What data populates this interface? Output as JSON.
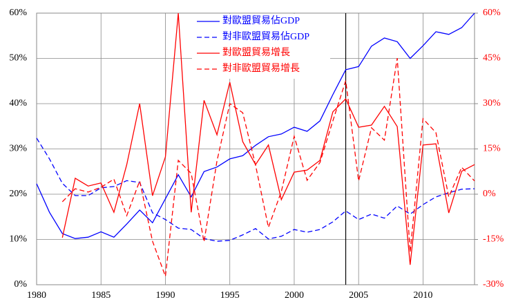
{
  "chart_data": {
    "type": "line",
    "x": [
      1980,
      1981,
      1982,
      1983,
      1984,
      1985,
      1986,
      1987,
      1988,
      1989,
      1990,
      1991,
      1992,
      1993,
      1994,
      1995,
      1996,
      1997,
      1998,
      1999,
      2000,
      2001,
      2002,
      2003,
      2004,
      2005,
      2006,
      2007,
      2008,
      2009,
      2010,
      2011,
      2012,
      2013,
      2014
    ],
    "xlim": [
      1980,
      2014
    ],
    "xticks": [
      1980,
      1985,
      1990,
      1995,
      2000,
      2005,
      2010
    ],
    "ylim": [
      0,
      60
    ],
    "yticks": [
      {
        "value": 0,
        "label": "0%"
      },
      {
        "value": 10,
        "label": "10%"
      },
      {
        "value": 20,
        "label": "20%"
      },
      {
        "value": 30,
        "label": "30%"
      },
      {
        "value": 40,
        "label": "40%"
      },
      {
        "value": 50,
        "label": "50%"
      },
      {
        "value": 60,
        "label": "60%"
      }
    ],
    "y2lim": [
      -30,
      60
    ],
    "y2ticks": [
      {
        "value": -30,
        "label": "-30%"
      },
      {
        "value": -15,
        "label": "-15%"
      },
      {
        "value": 0,
        "label": "0%"
      },
      {
        "value": 15,
        "label": "15%"
      },
      {
        "value": 30,
        "label": "30%"
      },
      {
        "value": 45,
        "label": "45%"
      },
      {
        "value": 60,
        "label": "60%"
      }
    ],
    "y2_color": "#ff0000",
    "grid": true,
    "vertical_line_x": 2004,
    "legend": "top",
    "series": [
      {
        "name": "對歐盟貿易佔GDP",
        "color": "#0000ff",
        "line_style": "solid",
        "values": [
          22.3,
          16,
          11.3,
          10.2,
          10.5,
          11.7,
          10.5,
          13.4,
          16.5,
          13.7,
          19,
          24.3,
          19.4,
          25,
          26,
          27.8,
          28.5,
          30.8,
          32.7,
          33.3,
          34.8,
          33.9,
          36.2,
          42,
          47.5,
          48.2,
          52.7,
          54.5,
          53.7,
          50,
          52.8,
          55.9,
          55.3,
          56.8,
          60
        ]
      },
      {
        "name": "對非歐盟貿易佔GDP",
        "color": "#0000ff",
        "line_style": "dashed",
        "values": [
          32.4,
          27.8,
          22.4,
          19.7,
          19.7,
          21.4,
          21.7,
          23,
          22.6,
          15.9,
          14.4,
          12.5,
          12.2,
          10.2,
          9.6,
          9.8,
          11,
          12.4,
          10.1,
          10.7,
          12.2,
          11.6,
          12.2,
          13.9,
          16.3,
          14.4,
          15.6,
          14.7,
          17.4,
          15.6,
          17.7,
          19.4,
          20.3,
          21.1,
          21.2
        ]
      },
      {
        "name": "對歐盟貿易增長",
        "color": "#ff0000",
        "line_style": "solid",
        "axis": "y2",
        "values": [
          null,
          null,
          -14.4,
          5.3,
          2.7,
          3.7,
          -6,
          9.8,
          30,
          -0.5,
          12.4,
          60,
          -6,
          31.1,
          19.7,
          37.1,
          17.4,
          9.8,
          16.3,
          -1.8,
          7.3,
          8,
          11.2,
          27.3,
          31.6,
          22.2,
          22.9,
          29.1,
          22.4,
          -23.4,
          16.3,
          16.7,
          -6.2,
          7.6,
          9.8
        ]
      },
      {
        "name": "對非歐盟貿易增長",
        "color": "#ff0000",
        "line_style": "dashed",
        "axis": "y2",
        "values": [
          null,
          null,
          -2.5,
          1.8,
          0.7,
          2.3,
          5,
          -7.1,
          4.4,
          -15.6,
          -27.2,
          11.2,
          6.9,
          -15.8,
          11,
          30,
          27,
          9.6,
          -11,
          0.9,
          19.2,
          4.6,
          10.5,
          24.3,
          37.6,
          4.4,
          22,
          17.9,
          45.1,
          -19.2,
          25,
          20.4,
          -0.9,
          8.9,
          4.4
        ]
      }
    ]
  }
}
